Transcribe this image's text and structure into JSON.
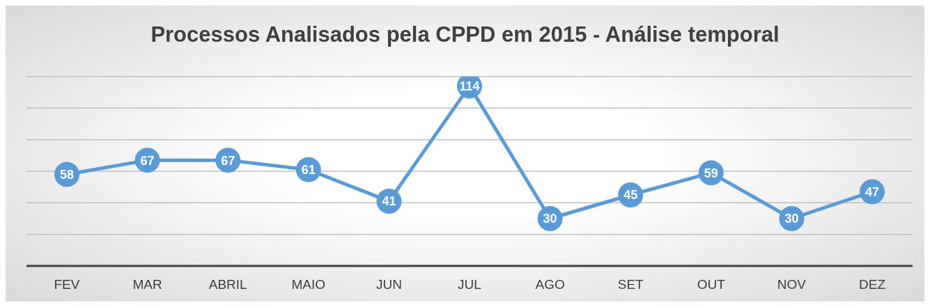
{
  "chart_data": {
    "type": "line",
    "title": "Processos Analisados pela CPPD em 2015 - Análise temporal",
    "categories": [
      "FEV",
      "MAR",
      "ABRIL",
      "MAIO",
      "JUN",
      "JUL",
      "AGO",
      "SET",
      "OUT",
      "NOV",
      "DEZ"
    ],
    "series": [
      {
        "color": "#5b9bd5",
        "values": [
          58,
          67,
          67,
          61,
          41,
          114,
          30,
          45,
          59,
          30,
          47
        ]
      }
    ],
    "ylim": [
      0,
      120
    ],
    "yticks": [
      {
        "value": 0,
        "label": null
      },
      {
        "value": 20,
        "label": null
      },
      {
        "value": 40,
        "label": null
      },
      {
        "value": 60,
        "label": null
      },
      {
        "value": 80,
        "label": null
      },
      {
        "value": 100,
        "label": null
      },
      {
        "value": 120,
        "label": null
      }
    ],
    "tick_labels": "x",
    "grid": "y",
    "marker": "circle",
    "line_style": "solid",
    "data_labels": true
  }
}
